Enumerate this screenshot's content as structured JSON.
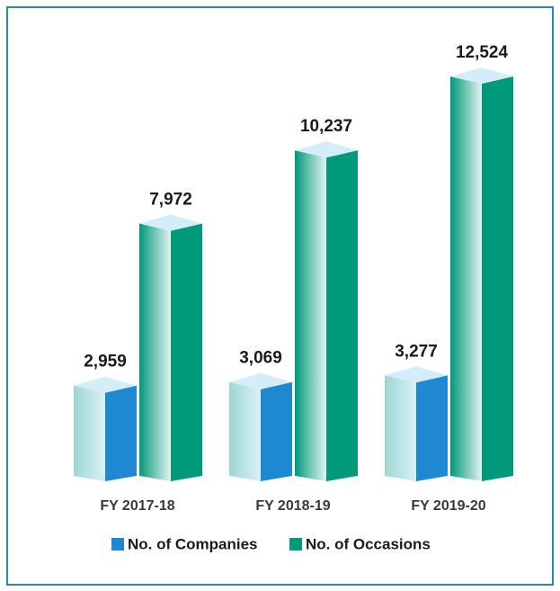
{
  "chart_data": {
    "type": "bar3d",
    "categories": [
      "FY 2017-18",
      "FY 2018-19",
      "FY 2019-20"
    ],
    "series": [
      {
        "name": "No. of Companies",
        "color": "#1e88d0",
        "values": [
          2959,
          3069,
          3277
        ],
        "value_labels": [
          "2,959",
          "3,069",
          "3,277"
        ]
      },
      {
        "name": "No. of Occasions",
        "color": "#00997a",
        "values": [
          7972,
          10237,
          12524
        ],
        "value_labels": [
          "7,972",
          "10,237",
          "12,524"
        ]
      }
    ]
  }
}
